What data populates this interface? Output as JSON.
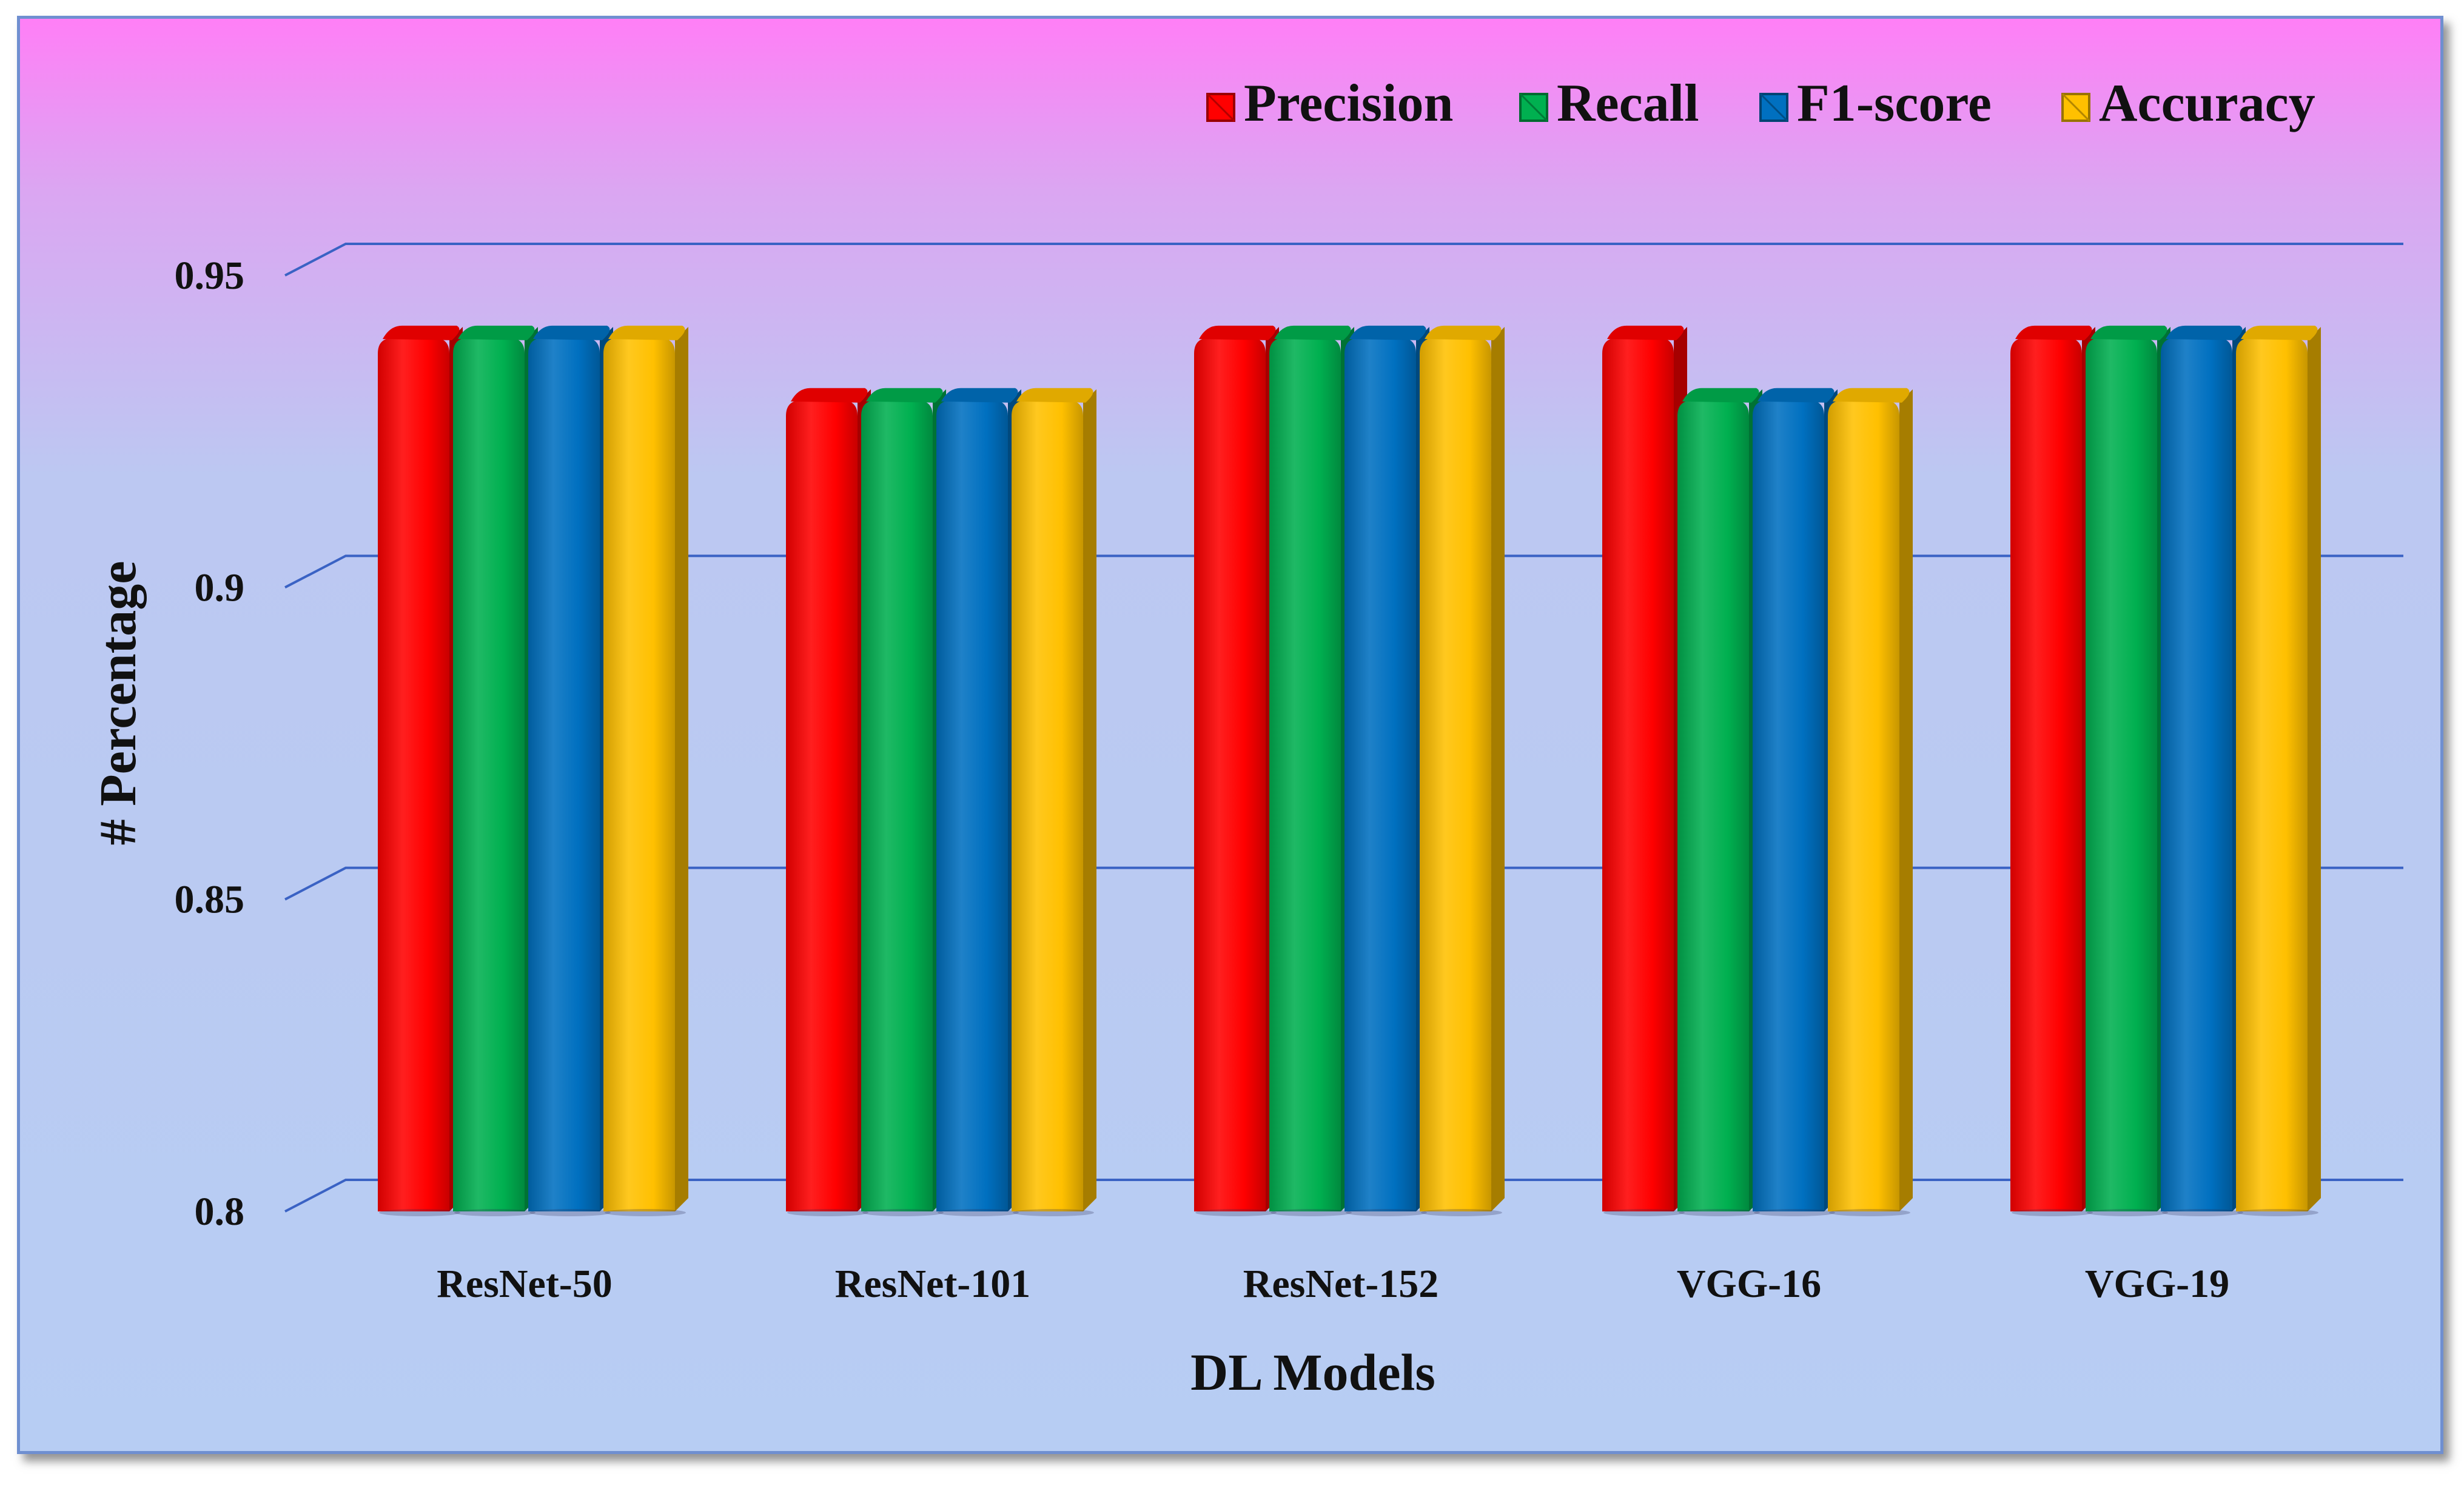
{
  "chart_data": {
    "type": "bar",
    "title": "",
    "xlabel": "DL Models",
    "ylabel": "# Percentage",
    "ylim": [
      0.8,
      0.95
    ],
    "yticks": [
      "0.8",
      "0.85",
      "0.9",
      "0.95"
    ],
    "ytick_values": [
      0.8,
      0.85,
      0.9,
      0.95
    ],
    "grid": true,
    "legend_position": "top-right",
    "categories": [
      "ResNet-50",
      "ResNet-101",
      "ResNet-152",
      "VGG-16",
      "VGG-19"
    ],
    "series": [
      {
        "name": "Precision",
        "color": "#ff0000",
        "values": [
          0.94,
          0.93,
          0.94,
          0.94,
          0.94
        ]
      },
      {
        "name": "Recall",
        "color": "#00b050",
        "values": [
          0.94,
          0.93,
          0.94,
          0.93,
          0.94
        ]
      },
      {
        "name": "F1-score",
        "color": "#0070c0",
        "values": [
          0.94,
          0.93,
          0.94,
          0.93,
          0.94
        ]
      },
      {
        "name": "Accuracy",
        "color": "#ffc000",
        "values": [
          0.94,
          0.93,
          0.94,
          0.93,
          0.94
        ]
      }
    ]
  }
}
